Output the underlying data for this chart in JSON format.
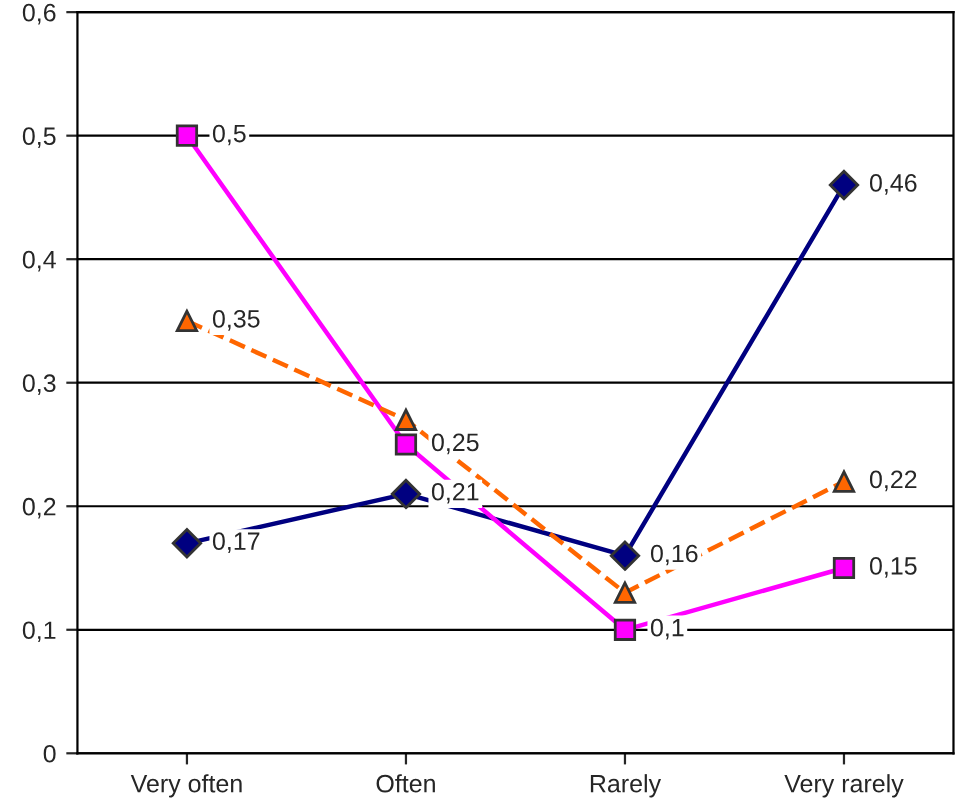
{
  "chart_data": {
    "type": "line",
    "categories": [
      "Very often",
      "Often",
      "Rarely",
      "Very rarely"
    ],
    "series": [
      {
        "color": "#000080",
        "values": [
          0.17,
          0.21,
          0.16,
          0.46
        ],
        "marker": "diamond",
        "line_style": "solid",
        "value_labels": [
          "0,17",
          "0,21",
          "0,16",
          "0,46"
        ]
      },
      {
        "color": "#ff00ff",
        "values": [
          0.5,
          0.25,
          0.1,
          0.15
        ],
        "marker": "square",
        "line_style": "solid",
        "value_labels": [
          "0,5",
          "0,25",
          "0,1",
          "0,15"
        ]
      },
      {
        "color": "#ff6600",
        "values": [
          0.35,
          0.27,
          0.13,
          0.22
        ],
        "marker": "triangle",
        "line_style": "dashed",
        "value_labels": [
          "0,35",
          null,
          null,
          "0,22"
        ]
      }
    ],
    "ylim": [
      0,
      0.6
    ],
    "yticks": [
      0,
      {
        "value": 0.1,
        "label": "0,1"
      },
      {
        "value": 0.2,
        "label": "0,2"
      },
      {
        "value": 0.3,
        "label": "0,3"
      },
      {
        "value": 0.4,
        "label": "0,4"
      },
      {
        "value": 0.5,
        "label": "0,5"
      },
      {
        "value": 0.6,
        "label": "0,6"
      }
    ],
    "grid": "y"
  }
}
